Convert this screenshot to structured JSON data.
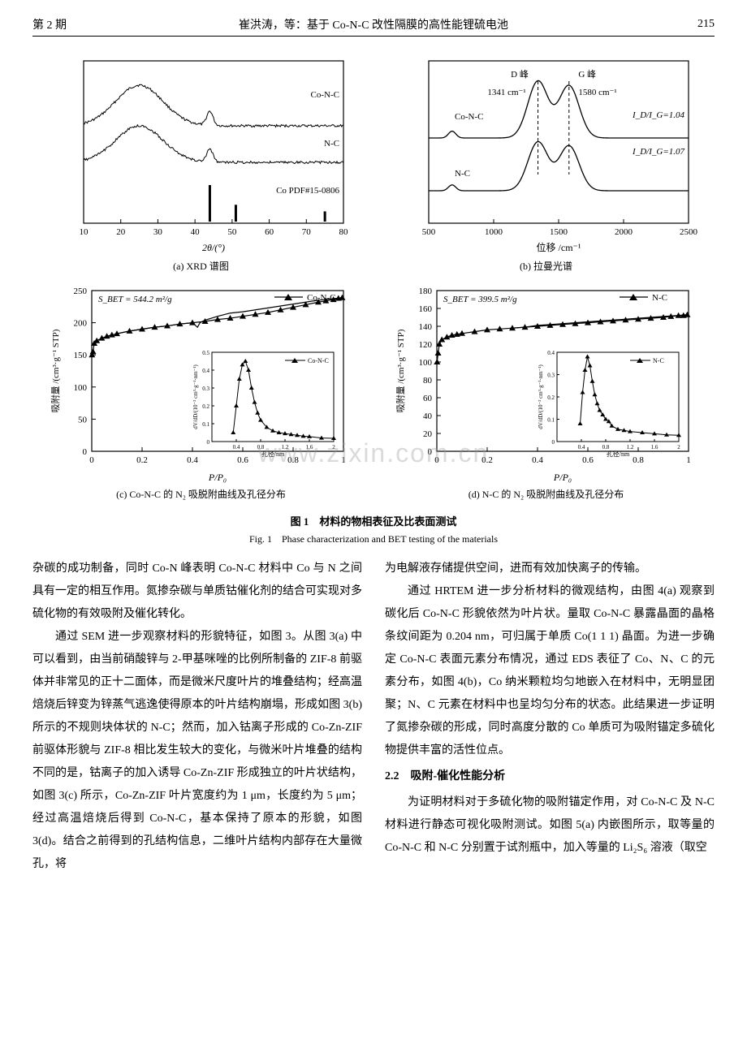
{
  "header": {
    "issue": "第 2 期",
    "title": "崔洪涛，等：基于 Co-N-C 改性隔膜的高性能锂硫电池",
    "page": "215"
  },
  "figure": {
    "main_caption_cn": "图 1　材料的物相表征及比表面测试",
    "main_caption_en": "Fig. 1　Phase characterization and BET testing of the materials",
    "panel_a": {
      "caption": "(a)  XRD 谱图",
      "xlabel": "2θ/(°)",
      "xlim": [
        10,
        80
      ],
      "xticks": [
        10,
        20,
        30,
        40,
        50,
        60,
        70,
        80
      ],
      "labels": {
        "conc": "Co-N-C",
        "nc": "N-C",
        "pdf": "Co PDF#15-0806"
      },
      "pdf_bars": {
        "positions": [
          44,
          51,
          75
        ],
        "heights": [
          1.0,
          0.46,
          0.28
        ]
      },
      "line_color": "#000000"
    },
    "panel_b": {
      "caption": "(b)  拉曼光谱",
      "xlabel": "位移 /cm⁻¹",
      "xlim": [
        500,
        2500
      ],
      "xticks": [
        500,
        1000,
        1500,
        2000,
        2500
      ],
      "labels": {
        "dpeak": "D 峰",
        "gpeak": "G 峰",
        "d_cm": "1341 cm⁻¹",
        "g_cm": "1580 cm⁻¹",
        "conc": "Co-N-C",
        "nc": "N-C",
        "ratio1": "I_D/I_G=1.04",
        "ratio2": "I_D/I_G=1.07"
      },
      "peak_x": [
        1341,
        1580
      ],
      "line_color": "#000000"
    },
    "panel_c": {
      "caption": "(c) Co-N-C 的 N₂ 吸脱附曲线及孔径分布",
      "xlabel": "P/P₀",
      "ylabel": "吸附量 /(cm³·g⁻¹ STP)",
      "xlim": [
        0,
        1.0
      ],
      "ylim": [
        0,
        250
      ],
      "xticks": [
        0,
        0.2,
        0.4,
        0.6,
        0.8,
        1.0
      ],
      "yticks": [
        0,
        50,
        100,
        150,
        200,
        250
      ],
      "sbet": "S_BET = 544.2 m²/g",
      "legend": "Co-N-C",
      "adsorption_points": [
        [
          0.001,
          150
        ],
        [
          0.005,
          155
        ],
        [
          0.01,
          168
        ],
        [
          0.02,
          172
        ],
        [
          0.04,
          176
        ],
        [
          0.06,
          179
        ],
        [
          0.08,
          181
        ],
        [
          0.1,
          183
        ],
        [
          0.15,
          187
        ],
        [
          0.2,
          190
        ],
        [
          0.25,
          193
        ],
        [
          0.3,
          195
        ],
        [
          0.35,
          198
        ],
        [
          0.4,
          200
        ],
        [
          0.45,
          202
        ],
        [
          0.5,
          205
        ],
        [
          0.55,
          207
        ],
        [
          0.6,
          210
        ],
        [
          0.65,
          213
        ],
        [
          0.7,
          216
        ],
        [
          0.75,
          220
        ],
        [
          0.8,
          224
        ],
        [
          0.85,
          228
        ],
        [
          0.9,
          232
        ],
        [
          0.93,
          234
        ],
        [
          0.96,
          236
        ],
        [
          0.98,
          238
        ],
        [
          0.995,
          239
        ]
      ],
      "desorption_points": [
        [
          0.995,
          239
        ],
        [
          0.95,
          237
        ],
        [
          0.9,
          235
        ],
        [
          0.85,
          232
        ],
        [
          0.8,
          229
        ],
        [
          0.75,
          226
        ],
        [
          0.7,
          223
        ],
        [
          0.65,
          220
        ],
        [
          0.6,
          217
        ],
        [
          0.55,
          215
        ],
        [
          0.5,
          210
        ],
        [
          0.45,
          204
        ],
        [
          0.43,
          200
        ],
        [
          0.42,
          193
        ],
        [
          0.4,
          200
        ],
        [
          0.35,
          198
        ],
        [
          0.3,
          195
        ],
        [
          0.25,
          193
        ],
        [
          0.2,
          190
        ],
        [
          0.15,
          187
        ],
        [
          0.1,
          183
        ]
      ],
      "marker": "triangle",
      "inset": {
        "xlabel": "孔径/nm",
        "ylabel": "dV/dD/(10⁻² cm³·g⁻¹·nm⁻¹)",
        "legend": "Co-N-C",
        "xlim": [
          0,
          2.0
        ],
        "ylim": [
          0,
          0.5
        ],
        "xticks": [
          0.4,
          0.8,
          1.2,
          1.6,
          2.0
        ],
        "yticks": [
          0,
          0.1,
          0.2,
          0.3,
          0.4,
          0.5
        ],
        "points": [
          [
            0.35,
            0.05
          ],
          [
            0.4,
            0.2
          ],
          [
            0.45,
            0.35
          ],
          [
            0.5,
            0.43
          ],
          [
            0.55,
            0.45
          ],
          [
            0.6,
            0.4
          ],
          [
            0.65,
            0.3
          ],
          [
            0.7,
            0.22
          ],
          [
            0.75,
            0.16
          ],
          [
            0.8,
            0.12
          ],
          [
            0.9,
            0.08
          ],
          [
            1.0,
            0.06
          ],
          [
            1.1,
            0.05
          ],
          [
            1.2,
            0.045
          ],
          [
            1.3,
            0.04
          ],
          [
            1.4,
            0.035
          ],
          [
            1.5,
            0.03
          ],
          [
            1.6,
            0.028
          ],
          [
            1.8,
            0.02
          ],
          [
            2.0,
            0.018
          ]
        ]
      }
    },
    "panel_d": {
      "caption": "(d)  N-C 的 N₂ 吸脱附曲线及孔径分布",
      "xlabel": "P/P₀",
      "ylabel": "吸附量 /(cm³·g⁻¹ STP)",
      "xlim": [
        0,
        1.0
      ],
      "ylim": [
        0,
        180
      ],
      "xticks": [
        0,
        0.2,
        0.4,
        0.6,
        0.8,
        1.0
      ],
      "yticks": [
        0,
        20,
        40,
        60,
        80,
        100,
        120,
        140,
        160,
        180
      ],
      "sbet": "S_BET = 399.5 m²/g",
      "legend": "N-C",
      "adsorption_points": [
        [
          0.001,
          100
        ],
        [
          0.005,
          110
        ],
        [
          0.01,
          120
        ],
        [
          0.02,
          125
        ],
        [
          0.04,
          128
        ],
        [
          0.06,
          130
        ],
        [
          0.08,
          131
        ],
        [
          0.1,
          132
        ],
        [
          0.15,
          134
        ],
        [
          0.2,
          136
        ],
        [
          0.25,
          137
        ],
        [
          0.3,
          138
        ],
        [
          0.35,
          139
        ],
        [
          0.4,
          140
        ],
        [
          0.45,
          141
        ],
        [
          0.5,
          142
        ],
        [
          0.55,
          143
        ],
        [
          0.6,
          144
        ],
        [
          0.65,
          145
        ],
        [
          0.7,
          146
        ],
        [
          0.75,
          147
        ],
        [
          0.8,
          148
        ],
        [
          0.85,
          149
        ],
        [
          0.9,
          150
        ],
        [
          0.93,
          151
        ],
        [
          0.96,
          152
        ],
        [
          0.98,
          152
        ],
        [
          0.995,
          153
        ]
      ],
      "desorption_points": [
        [
          0.995,
          153
        ],
        [
          0.95,
          152
        ],
        [
          0.9,
          151
        ],
        [
          0.85,
          150
        ],
        [
          0.8,
          149
        ],
        [
          0.75,
          148
        ],
        [
          0.7,
          147
        ],
        [
          0.65,
          146
        ],
        [
          0.6,
          145
        ],
        [
          0.55,
          144
        ],
        [
          0.5,
          143
        ],
        [
          0.45,
          142
        ],
        [
          0.4,
          141
        ],
        [
          0.35,
          139
        ],
        [
          0.3,
          138
        ]
      ],
      "marker": "triangle",
      "inset": {
        "xlabel": "孔径/nm",
        "ylabel": "dV/dD/(10⁻² cm³·g⁻¹·nm⁻¹)",
        "legend": "N-C",
        "xlim": [
          0,
          2.0
        ],
        "ylim": [
          0,
          0.4
        ],
        "xticks": [
          0.4,
          0.8,
          1.2,
          1.6,
          2.0
        ],
        "yticks": [
          0,
          0.1,
          0.2,
          0.3,
          0.4
        ],
        "points": [
          [
            0.38,
            0.08
          ],
          [
            0.42,
            0.22
          ],
          [
            0.46,
            0.32
          ],
          [
            0.5,
            0.38
          ],
          [
            0.54,
            0.34
          ],
          [
            0.58,
            0.27
          ],
          [
            0.62,
            0.21
          ],
          [
            0.66,
            0.17
          ],
          [
            0.7,
            0.14
          ],
          [
            0.75,
            0.12
          ],
          [
            0.8,
            0.1
          ],
          [
            0.85,
            0.09
          ],
          [
            0.9,
            0.07
          ],
          [
            1.0,
            0.055
          ],
          [
            1.1,
            0.05
          ],
          [
            1.2,
            0.045
          ],
          [
            1.4,
            0.04
          ],
          [
            1.6,
            0.035
          ],
          [
            1.8,
            0.03
          ],
          [
            2.0,
            0.028
          ]
        ]
      }
    }
  },
  "text": {
    "left": {
      "p1": "杂碳的成功制备，同时 Co-N 峰表明 Co-N-C 材料中 Co 与 N 之间具有一定的相互作用。氮掺杂碳与单质钴催化剂的结合可实现对多硫化物的有效吸附及催化转化。",
      "p2": "通过 SEM 进一步观察材料的形貌特征，如图 3。从图 3(a) 中可以看到，由当前硝酸锌与 2-甲基咪唑的比例所制备的 ZIF-8 前驱体并非常见的正十二面体，而是微米尺度叶片的堆叠结构；经高温焙烧后锌变为锌蒸气逃逸使得原本的叶片结构崩塌，形成如图 3(b) 所示的不规则块体状的 N-C；然而，加入钴离子形成的 Co-Zn-ZIF 前驱体形貌与 ZIF-8 相比发生较大的变化，与微米叶片堆叠的结构不同的是，钴离子的加入诱导 Co-Zn-ZIF 形成独立的叶片状结构，如图 3(c) 所示，Co-Zn-ZIF 叶片宽度约为 1 μm，长度约为 5 μm；经过高温焙烧后得到 Co-N-C，基本保持了原本的形貌，如图 3(d)。结合之前得到的孔结构信息，二维叶片结构内部存在大量微孔，将"
    },
    "right": {
      "p1": "为电解液存储提供空间，进而有效加快离子的传输。",
      "p2": "通过 HRTEM 进一步分析材料的微观结构，由图 4(a) 观察到碳化后 Co-N-C 形貌依然为叶片状。量取 Co-N-C 暴露晶面的晶格条纹间距为 0.204 nm，可归属于单质 Co(1 1 1) 晶面。为进一步确定 Co-N-C 表面元素分布情况，通过 EDS 表征了 Co、N、C 的元素分布，如图 4(b)，Co 纳米颗粒均匀地嵌入在材料中，无明显团聚；N、C 元素在材料中也呈均匀分布的状态。此结果进一步证明了氮掺杂碳的形成，同时高度分散的 Co 单质可为吸附锚定多硫化物提供丰富的活性位点。",
      "sec": "2.2　吸附-催化性能分析",
      "p3": "为证明材料对于多硫化物的吸附锚定作用，对 Co-N-C 及 N-C 材料进行静态可视化吸附测试。如图 5(a) 内嵌图所示，取等量的 Co-N-C 和 N-C 分别置于试剂瓶中，加入等量的 Li₂S₆ 溶液（取空"
    }
  },
  "watermark": "www.zixin.com.cn"
}
